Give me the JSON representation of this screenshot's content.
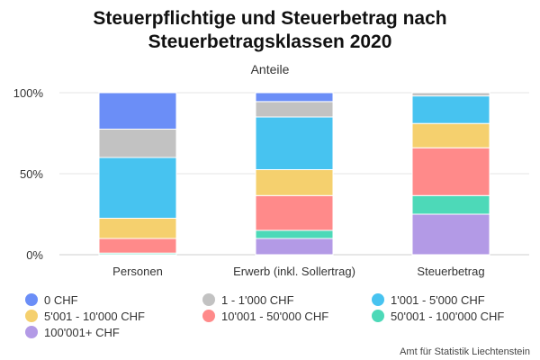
{
  "chart_data": {
    "type": "bar",
    "stacked": true,
    "percent": true,
    "title_lines": [
      "Steuerpflichtige und Steuerbetrag nach",
      "Steuerbetragsklassen 2020"
    ],
    "subtitle": "Anteile",
    "categories": [
      "Personen",
      "Erwerb (inkl. Sollertrag)",
      "Steuerbetrag"
    ],
    "y_ticks": [
      "0%",
      "50%",
      "100%"
    ],
    "ylim": [
      0,
      100
    ],
    "grid": true,
    "legend_position": "bottom",
    "series": [
      {
        "name": "100'001+ CHF",
        "color": "#b39ae6",
        "values": [
          0.1,
          10,
          25
        ]
      },
      {
        "name": "50'001 - 100'000 CHF",
        "color": "#4dd9b8",
        "values": [
          0.9,
          5,
          11.5
        ]
      },
      {
        "name": "10'001 - 50'000 CHF",
        "color": "#ff8a8a",
        "values": [
          9,
          21.5,
          29.5
        ]
      },
      {
        "name": "5'001 - 10'000 CHF",
        "color": "#f5d06e",
        "values": [
          12.5,
          16,
          15
        ]
      },
      {
        "name": "1'001 - 5'000 CHF",
        "color": "#47c3f0",
        "values": [
          37.5,
          32.5,
          17
        ]
      },
      {
        "name": "1 - 1'000 CHF",
        "color": "#c2c2c2",
        "values": [
          17.5,
          9.5,
          2
        ]
      },
      {
        "name": "0 CHF",
        "color": "#6b8ef7",
        "values": [
          22.5,
          5.5,
          0
        ]
      }
    ],
    "legend_order": [
      "0 CHF",
      "1 - 1'000 CHF",
      "1'001 - 5'000 CHF",
      "5'001 - 10'000 CHF",
      "10'001 - 50'000 CHF",
      "50'001 - 100'000 CHF",
      "100'001+ CHF"
    ]
  },
  "credit": "Amt für Statistik Liechtenstein"
}
